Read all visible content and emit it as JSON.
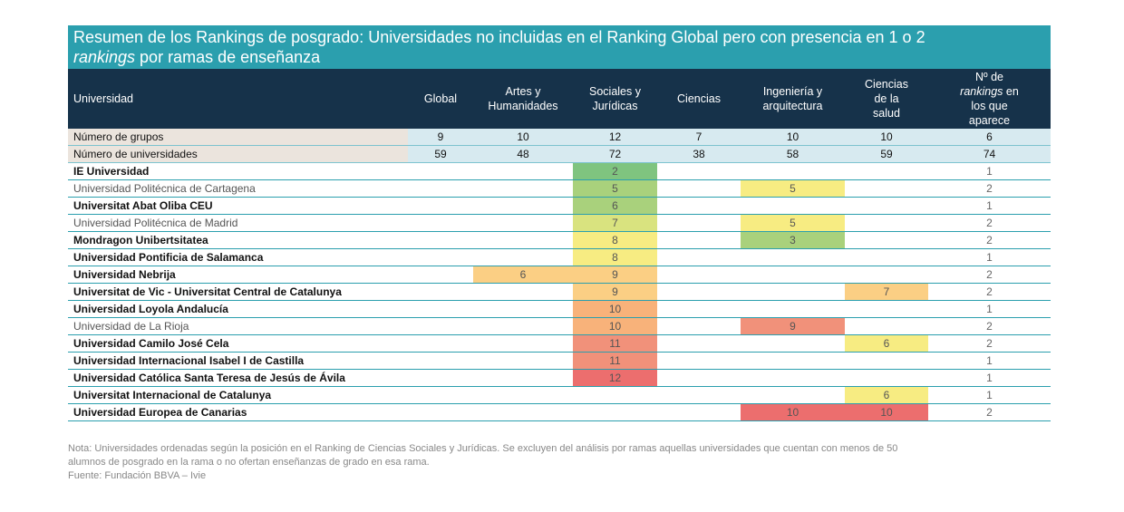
{
  "title": {
    "line1": "Resumen de los Rankings de posgrado: Universidades no incluidas en el Ranking Global pero con presencia en 1 o 2",
    "line2_italic": "rankings",
    "line2_rest": " por ramas de enseñanza"
  },
  "headers": {
    "univ": "Universidad",
    "global": "Global",
    "artes_1": "Artes y",
    "artes_2": "Humanidades",
    "sociales_1": "Sociales y",
    "sociales_2": "Jurídicas",
    "ciencias": "Ciencias",
    "ing_1": "Ingeniería y",
    "ing_2": "arquitectura",
    "salud_1": "Ciencias",
    "salud_2": "de la",
    "salud_3": "salud",
    "n_1": "Nº de",
    "n_2": "rankings",
    "n_3": "en",
    "n_4": "los que",
    "n_5": "aparece"
  },
  "summary": [
    {
      "label": "Número de grupos",
      "values": [
        "9",
        "10",
        "12",
        "7",
        "10",
        "10",
        "6"
      ]
    },
    {
      "label": "Número de universidades",
      "values": [
        "59",
        "48",
        "72",
        "38",
        "58",
        "59",
        "74"
      ]
    }
  ],
  "rows": [
    {
      "name": "IE Universidad",
      "bold": true,
      "cells": [
        "",
        "",
        "2",
        "",
        "",
        "",
        "1"
      ]
    },
    {
      "name": "Universidad Politécnica de Cartagena",
      "bold": false,
      "cells": [
        "",
        "",
        "5",
        "",
        "5",
        "",
        "2"
      ]
    },
    {
      "name": "Universitat Abat Oliba CEU",
      "bold": true,
      "cells": [
        "",
        "",
        "6",
        "",
        "",
        "",
        "1"
      ]
    },
    {
      "name": "Universidad Politécnica de Madrid",
      "bold": false,
      "cells": [
        "",
        "",
        "7",
        "",
        "5",
        "",
        "2"
      ]
    },
    {
      "name": "Mondragon Unibertsitatea",
      "bold": true,
      "cells": [
        "",
        "",
        "8",
        "",
        "3",
        "",
        "2"
      ]
    },
    {
      "name": "Universidad Pontificia de Salamanca",
      "bold": true,
      "cells": [
        "",
        "",
        "8",
        "",
        "",
        "",
        "1"
      ]
    },
    {
      "name": "Universidad Nebrija",
      "bold": true,
      "cells": [
        "",
        "6",
        "9",
        "",
        "",
        "",
        "2"
      ]
    },
    {
      "name": "Universitat de Vic - Universitat Central de Catalunya",
      "bold": true,
      "cells": [
        "",
        "",
        "9",
        "",
        "",
        "7",
        "2"
      ]
    },
    {
      "name": "Universidad Loyola Andalucía",
      "bold": true,
      "cells": [
        "",
        "",
        "10",
        "",
        "",
        "",
        "1"
      ]
    },
    {
      "name": "Universidad de La Rioja",
      "bold": false,
      "cells": [
        "",
        "",
        "10",
        "",
        "9",
        "",
        "2"
      ]
    },
    {
      "name": "Universidad Camilo José Cela",
      "bold": true,
      "cells": [
        "",
        "",
        "11",
        "",
        "",
        "6",
        "2"
      ]
    },
    {
      "name": "Universidad Internacional Isabel I de Castilla",
      "bold": true,
      "cells": [
        "",
        "",
        "11",
        "",
        "",
        "",
        "1"
      ]
    },
    {
      "name": "Universidad Católica Santa Teresa de Jesús de Ávila",
      "bold": true,
      "cells": [
        "",
        "",
        "12",
        "",
        "",
        "",
        "1"
      ]
    },
    {
      "name": "Universitat Internacional de Catalunya",
      "bold": true,
      "cells": [
        "",
        "",
        "",
        "",
        "",
        "6",
        "1"
      ]
    },
    {
      "name": "Universidad Europea de Canarias",
      "bold": true,
      "cells": [
        "",
        "",
        "",
        "",
        "10",
        "10",
        "2"
      ]
    }
  ],
  "colors": {
    "green_dark": "#7fc47f",
    "green_light": "#a9d17c",
    "yellow_green": "#d9e37f",
    "yellow": "#f7ec82",
    "orange_light": "#fbcf84",
    "orange": "#f8b27a",
    "salmon": "#f1917a",
    "red": "#ec6e6e"
  },
  "cell_colors": [
    [
      "",
      "",
      "green_dark",
      "",
      "",
      "",
      ""
    ],
    [
      "",
      "",
      "green_light",
      "",
      "yellow",
      "",
      ""
    ],
    [
      "",
      "",
      "green_light",
      "",
      "",
      "",
      ""
    ],
    [
      "",
      "",
      "yellow_green",
      "",
      "yellow",
      "",
      ""
    ],
    [
      "",
      "",
      "yellow",
      "",
      "green_light",
      "",
      ""
    ],
    [
      "",
      "",
      "yellow",
      "",
      "",
      "",
      ""
    ],
    [
      "",
      "orange_light",
      "orange_light",
      "",
      "",
      "",
      ""
    ],
    [
      "",
      "",
      "orange_light",
      "",
      "",
      "orange_light",
      ""
    ],
    [
      "",
      "",
      "orange",
      "",
      "",
      "",
      ""
    ],
    [
      "",
      "",
      "orange",
      "",
      "salmon",
      "",
      ""
    ],
    [
      "",
      "",
      "salmon",
      "",
      "",
      "yellow",
      ""
    ],
    [
      "",
      "",
      "salmon",
      "",
      "",
      "",
      ""
    ],
    [
      "",
      "",
      "red",
      "",
      "",
      "",
      ""
    ],
    [
      "",
      "",
      "",
      "",
      "",
      "yellow",
      ""
    ],
    [
      "",
      "",
      "",
      "",
      "red",
      "red",
      ""
    ]
  ],
  "note": {
    "line1": "Nota: Universidades ordenadas según la posición en el Ranking de Ciencias Sociales y Jurídicas. Se excluyen del análisis por ramas aquellas universidades que cuentan con menos de 50",
    "line2": "alumnos de posgrado en la rama o no ofertan enseñanzas de grado en esa rama.",
    "source": "Fuente: Fundación BBVA – Ivie"
  }
}
